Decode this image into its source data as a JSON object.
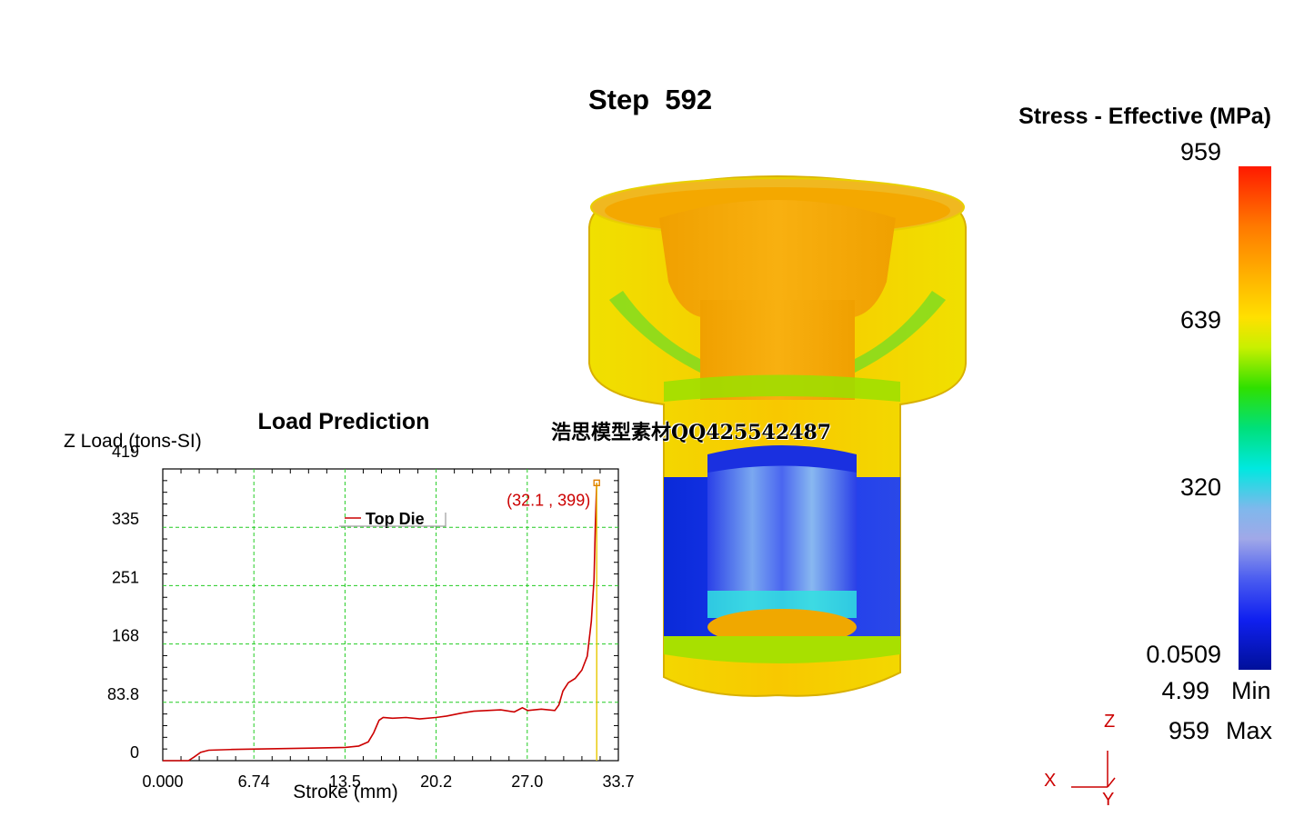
{
  "viewer": {
    "step_label": "Step  592"
  },
  "legend": {
    "title": "Stress - Effective (MPa)",
    "scale_labels": [
      "959",
      "639",
      "320",
      "0.0509"
    ],
    "min_value": "4.99",
    "min_label": "Min",
    "max_value": "959",
    "max_label": "Max"
  },
  "watermark": "浩思模型素材QQ425542487",
  "triad": {
    "z": "Z",
    "x": "X",
    "y": "Y"
  },
  "chart_data": {
    "type": "line",
    "title": "Load Prediction",
    "xlabel": "Stroke (mm)",
    "ylabel": "Z Load (tons-SI)",
    "xlim": [
      0,
      33.7
    ],
    "ylim": [
      0,
      419
    ],
    "x_ticks": [
      "0.000",
      "6.74",
      "13.5",
      "20.2",
      "27.0",
      "33.7"
    ],
    "y_ticks": [
      "0",
      "83.8",
      "168",
      "251",
      "335",
      "419"
    ],
    "grid": true,
    "legend_position": "top-center",
    "series": [
      {
        "name": "Top Die",
        "color": "#cc0000",
        "x": [
          0,
          1.9,
          2.3,
          2.8,
          3.4,
          5,
          8,
          11,
          13.5,
          14.5,
          15.2,
          15.6,
          16.0,
          16.3,
          17,
          18,
          19,
          20.2,
          21,
          22,
          23,
          24,
          25,
          26,
          26.6,
          27.0,
          28,
          29.0,
          29.3,
          29.6,
          30.0,
          30.5,
          31.0,
          31.4,
          31.7,
          31.9,
          32.0,
          32.1
        ],
        "y": [
          0,
          0,
          5,
          12,
          15,
          16,
          17,
          18,
          19,
          21,
          27,
          40,
          58,
          62,
          61,
          62,
          60,
          62,
          64,
          68,
          71,
          72,
          73,
          70,
          76,
          72,
          74,
          72,
          80,
          100,
          112,
          118,
          130,
          150,
          200,
          260,
          340,
          399
        ]
      }
    ],
    "annotation": {
      "text": "(32.1 , 399)",
      "x": 32.1,
      "y": 399,
      "color": "#cc0000"
    }
  }
}
